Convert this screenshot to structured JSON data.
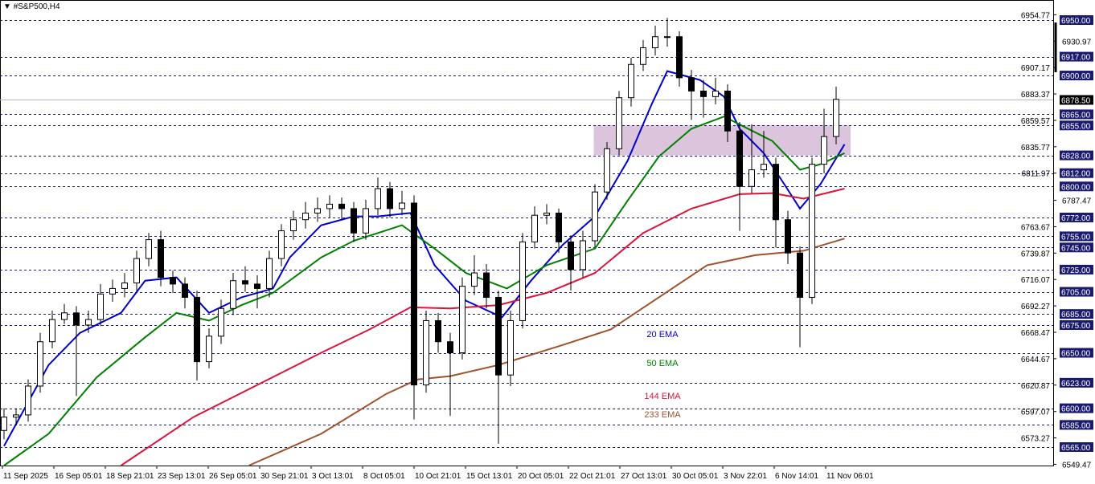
{
  "header": {
    "symbol_title": "#S&P500,H4",
    "dropdown_icon": "triangle-down-icon"
  },
  "colors": {
    "ema20": "#0000cc",
    "ema50": "#008000",
    "ema144": "#dc143c",
    "ema233": "#a0522d",
    "zone": "#d8bfd8",
    "level_box": "#1a1a6e",
    "current_box": "#000000"
  },
  "chart_data": {
    "type": "candlestick",
    "title": "#S&P500,H4",
    "ylim": [
      6549.47,
      6970
    ],
    "grid": false,
    "y_ticks": [
      "6954.77",
      "6930.97",
      "6907.17",
      "6883.37",
      "6859.57",
      "6835.77",
      "6811.97",
      "6787.47",
      "6763.67",
      "6739.87",
      "6716.07",
      "6692.27",
      "6668.47",
      "6644.67",
      "6620.87",
      "6597.07",
      "6573.27",
      "6549.47"
    ],
    "x_ticks": [
      "11 Sep 2025",
      "16 Sep 05:01",
      "18 Sep 21:01",
      "23 Sep 13:01",
      "26 Sep 05:01",
      "30 Sep 21:01",
      "3 Oct 13:01",
      "8 Oct 05:01",
      "10 Oct 21:01",
      "15 Oct 13:01",
      "20 Oct 05:01",
      "22 Oct 21:01",
      "27 Oct 13:01",
      "30 Oct 05:01",
      "3 Nov 22:01",
      "6 Nov 14:01",
      "11 Nov 06:01"
    ],
    "horizontal_levels": [
      "6950.00",
      "6917.00",
      "6900.00",
      "6865.00",
      "6855.00",
      "6828.00",
      "6812.00",
      "6800.00",
      "6772.00",
      "6755.00",
      "6745.00",
      "6725.00",
      "6705.00",
      "6685.00",
      "6675.00",
      "6650.00",
      "6623.00",
      "6600.00",
      "6585.00",
      "6565.00"
    ],
    "current_price": "6878.50",
    "zone": {
      "price_low": 6828,
      "price_high": 6855,
      "bar_start": 48.9,
      "bar_end": 70.2
    },
    "candles_ohlc": [
      [
        6580,
        6600,
        6572,
        6592
      ],
      [
        6592,
        6600,
        6585,
        6594
      ],
      [
        6594,
        6626,
        6588,
        6620
      ],
      [
        6620,
        6668,
        6614,
        6660
      ],
      [
        6660,
        6688,
        6654,
        6680
      ],
      [
        6680,
        6694,
        6676,
        6686
      ],
      [
        6686,
        6692,
        6611,
        6675
      ],
      [
        6675,
        6688,
        6668,
        6680
      ],
      [
        6680,
        6712,
        6674,
        6703
      ],
      [
        6703,
        6716,
        6696,
        6708
      ],
      [
        6708,
        6722,
        6700,
        6713
      ],
      [
        6713,
        6742,
        6706,
        6735
      ],
      [
        6735,
        6758,
        6728,
        6752
      ],
      [
        6752,
        6760,
        6710,
        6718
      ],
      [
        6718,
        6724,
        6704,
        6712
      ],
      [
        6712,
        6718,
        6690,
        6700
      ],
      [
        6700,
        6706,
        6625,
        6642
      ],
      [
        6642,
        6672,
        6636,
        6665
      ],
      [
        6665,
        6698,
        6658,
        6690
      ],
      [
        6690,
        6722,
        6684,
        6715
      ],
      [
        6715,
        6728,
        6705,
        6712
      ],
      [
        6712,
        6720,
        6690,
        6708
      ],
      [
        6708,
        6742,
        6700,
        6735
      ],
      [
        6735,
        6766,
        6728,
        6760
      ],
      [
        6760,
        6778,
        6752,
        6770
      ],
      [
        6770,
        6786,
        6762,
        6776
      ],
      [
        6776,
        6790,
        6768,
        6780
      ],
      [
        6780,
        6792,
        6772,
        6784
      ],
      [
        6784,
        6790,
        6770,
        6780
      ],
      [
        6780,
        6786,
        6750,
        6758
      ],
      [
        6758,
        6788,
        6752,
        6780
      ],
      [
        6780,
        6808,
        6774,
        6798
      ],
      [
        6798,
        6804,
        6772,
        6780
      ],
      [
        6780,
        6796,
        6774,
        6785
      ],
      [
        6785,
        6792,
        6590,
        6621
      ],
      [
        6621,
        6688,
        6614,
        6679
      ],
      [
        6679,
        6686,
        6650,
        6660
      ],
      [
        6660,
        6668,
        6593,
        6650
      ],
      [
        6650,
        6718,
        6644,
        6710
      ],
      [
        6710,
        6738,
        6702,
        6722
      ],
      [
        6722,
        6730,
        6690,
        6700
      ],
      [
        6700,
        6706,
        6568,
        6630
      ],
      [
        6630,
        6688,
        6620,
        6679
      ],
      [
        6679,
        6758,
        6672,
        6750
      ],
      [
        6750,
        6782,
        6744,
        6774
      ],
      [
        6774,
        6784,
        6766,
        6776
      ],
      [
        6776,
        6780,
        6740,
        6750
      ],
      [
        6750,
        6756,
        6706,
        6725
      ],
      [
        6725,
        6760,
        6718,
        6751
      ],
      [
        6751,
        6802,
        6745,
        6795
      ],
      [
        6795,
        6840,
        6788,
        6834
      ],
      [
        6834,
        6886,
        6828,
        6880
      ],
      [
        6880,
        6916,
        6872,
        6910
      ],
      [
        6910,
        6932,
        6904,
        6925
      ],
      [
        6925,
        6945,
        6918,
        6935
      ],
      [
        6935,
        6952,
        6926,
        6935
      ],
      [
        6935,
        6940,
        6890,
        6898
      ],
      [
        6898,
        6905,
        6860,
        6886
      ],
      [
        6886,
        6896,
        6862,
        6881
      ],
      [
        6881,
        6898,
        6874,
        6886
      ],
      [
        6886,
        6892,
        6840,
        6850
      ],
      [
        6850,
        6858,
        6760,
        6800
      ],
      [
        6800,
        6856,
        6794,
        6815
      ],
      [
        6815,
        6850,
        6808,
        6820
      ],
      [
        6820,
        6826,
        6745,
        6770
      ],
      [
        6770,
        6778,
        6730,
        6740
      ],
      [
        6740,
        6746,
        6655,
        6700
      ],
      [
        6700,
        6826,
        6694,
        6820
      ],
      [
        6820,
        6870,
        6812,
        6845
      ],
      [
        6845,
        6890,
        6838,
        6878.5
      ]
    ],
    "series": [
      {
        "name": "20 EMA",
        "points": [
          [
            0,
            6566
          ],
          [
            3.7,
            6639
          ],
          [
            6.3,
            6668
          ],
          [
            9.7,
            6686
          ],
          [
            11.7,
            6715
          ],
          [
            14.3,
            6718
          ],
          [
            17,
            6686
          ],
          [
            19.7,
            6700
          ],
          [
            22.3,
            6708
          ],
          [
            23.7,
            6736
          ],
          [
            26.3,
            6765
          ],
          [
            29,
            6773
          ],
          [
            31,
            6773
          ],
          [
            33.7,
            6776
          ],
          [
            35.7,
            6729
          ],
          [
            38.3,
            6697
          ],
          [
            41.3,
            6682
          ],
          [
            43.7,
            6715
          ],
          [
            46.3,
            6747
          ],
          [
            49,
            6773
          ],
          [
            51.7,
            6823
          ],
          [
            53.7,
            6874
          ],
          [
            55,
            6904
          ],
          [
            57.7,
            6896
          ],
          [
            59.7,
            6881
          ],
          [
            61,
            6852
          ],
          [
            63,
            6830
          ],
          [
            64.7,
            6802
          ],
          [
            66,
            6780
          ],
          [
            67.7,
            6802
          ],
          [
            69.7,
            6838
          ]
        ]
      },
      {
        "name": "50 EMA",
        "points": [
          [
            0,
            6534
          ],
          [
            3.7,
            6577
          ],
          [
            7.7,
            6628
          ],
          [
            11.7,
            6664
          ],
          [
            14.3,
            6686
          ],
          [
            17,
            6679
          ],
          [
            19.7,
            6693
          ],
          [
            22.3,
            6704
          ],
          [
            26.3,
            6736
          ],
          [
            29,
            6751
          ],
          [
            33,
            6765
          ],
          [
            35.7,
            6744
          ],
          [
            38.3,
            6722
          ],
          [
            41.7,
            6708
          ],
          [
            45,
            6729
          ],
          [
            49,
            6744
          ],
          [
            51.7,
            6787
          ],
          [
            54.3,
            6827
          ],
          [
            57,
            6852
          ],
          [
            59.7,
            6863
          ],
          [
            63.7,
            6841
          ],
          [
            66,
            6815
          ],
          [
            67.7,
            6820
          ],
          [
            69.7,
            6830
          ]
        ]
      },
      {
        "name": "144 EMA",
        "points": [
          [
            9.7,
            6548
          ],
          [
            15.7,
            6592
          ],
          [
            21,
            6621
          ],
          [
            26.3,
            6650
          ],
          [
            30.3,
            6671
          ],
          [
            33.7,
            6691
          ],
          [
            37,
            6690
          ],
          [
            41,
            6693
          ],
          [
            45,
            6704
          ],
          [
            49,
            6722
          ],
          [
            53,
            6758
          ],
          [
            57,
            6780
          ],
          [
            61,
            6793
          ],
          [
            63.7,
            6794
          ],
          [
            66.3,
            6789
          ],
          [
            69.7,
            6798
          ]
        ]
      },
      {
        "name": "233 EMA",
        "points": [
          [
            20.3,
            6548
          ],
          [
            26.3,
            6577
          ],
          [
            31.7,
            6613
          ],
          [
            34.3,
            6626
          ],
          [
            37,
            6629
          ],
          [
            41,
            6639
          ],
          [
            46.3,
            6657
          ],
          [
            50.3,
            6671
          ],
          [
            54.3,
            6700
          ],
          [
            58.3,
            6729
          ],
          [
            62.3,
            6738
          ],
          [
            66.3,
            6742
          ],
          [
            69.7,
            6753
          ]
        ]
      }
    ]
  }
}
